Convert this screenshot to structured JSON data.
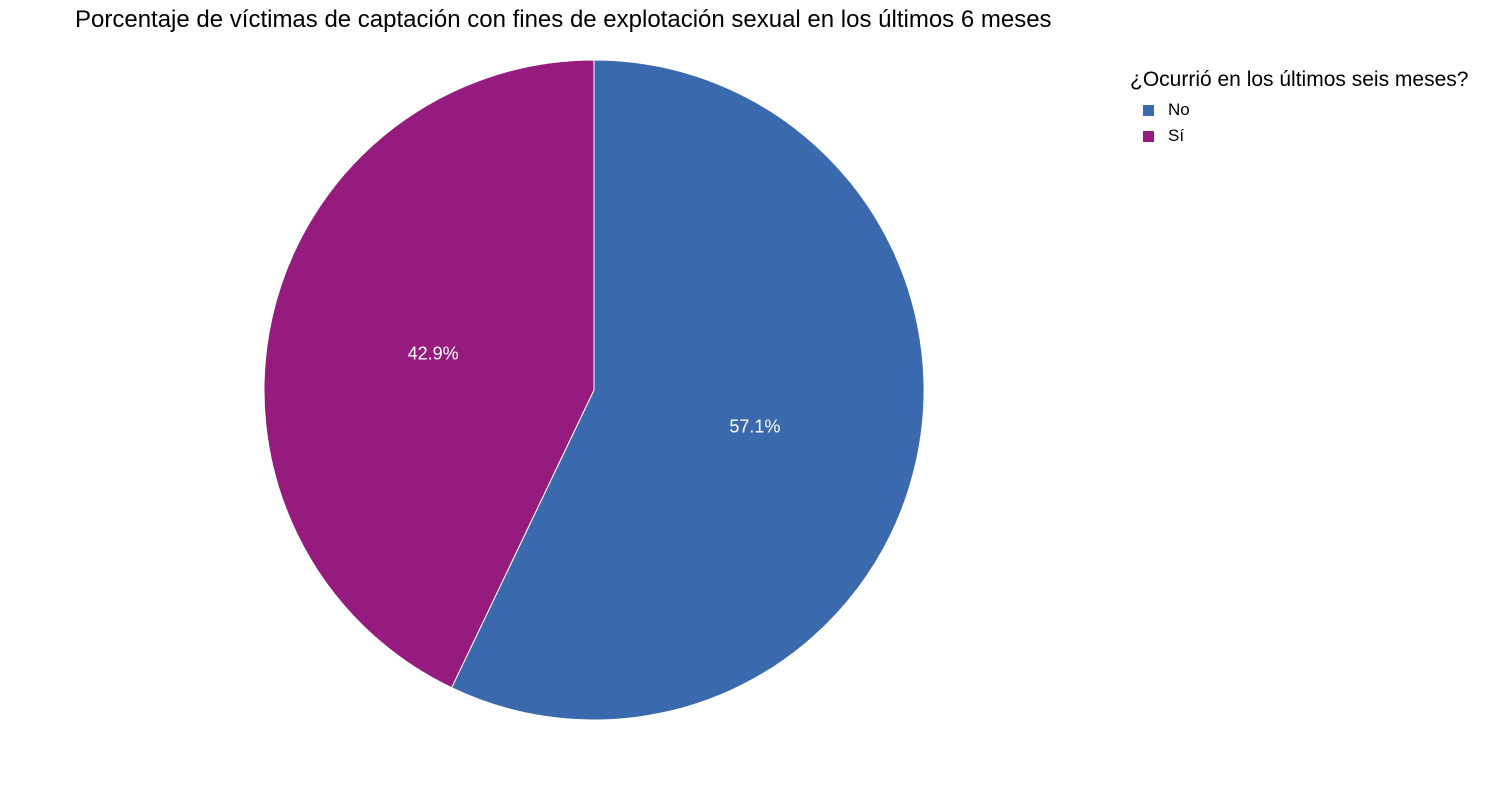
{
  "chart_data": {
    "type": "pie",
    "title": "Porcentaje de víctimas de captación con fines de explotación sexual en los últimos 6 meses",
    "legend": {
      "title": "¿Ocurrió en los últimos seis meses?",
      "placement": "top-right"
    },
    "slices": [
      {
        "label": "No",
        "value": 57.1,
        "display": "57.1%",
        "color": "#3a69ad"
      },
      {
        "label": "Sí",
        "value": 42.9,
        "display": "42.9%",
        "color": "#951b7f"
      }
    ],
    "start_angle": "12 o'clock",
    "direction": "clockwise"
  }
}
